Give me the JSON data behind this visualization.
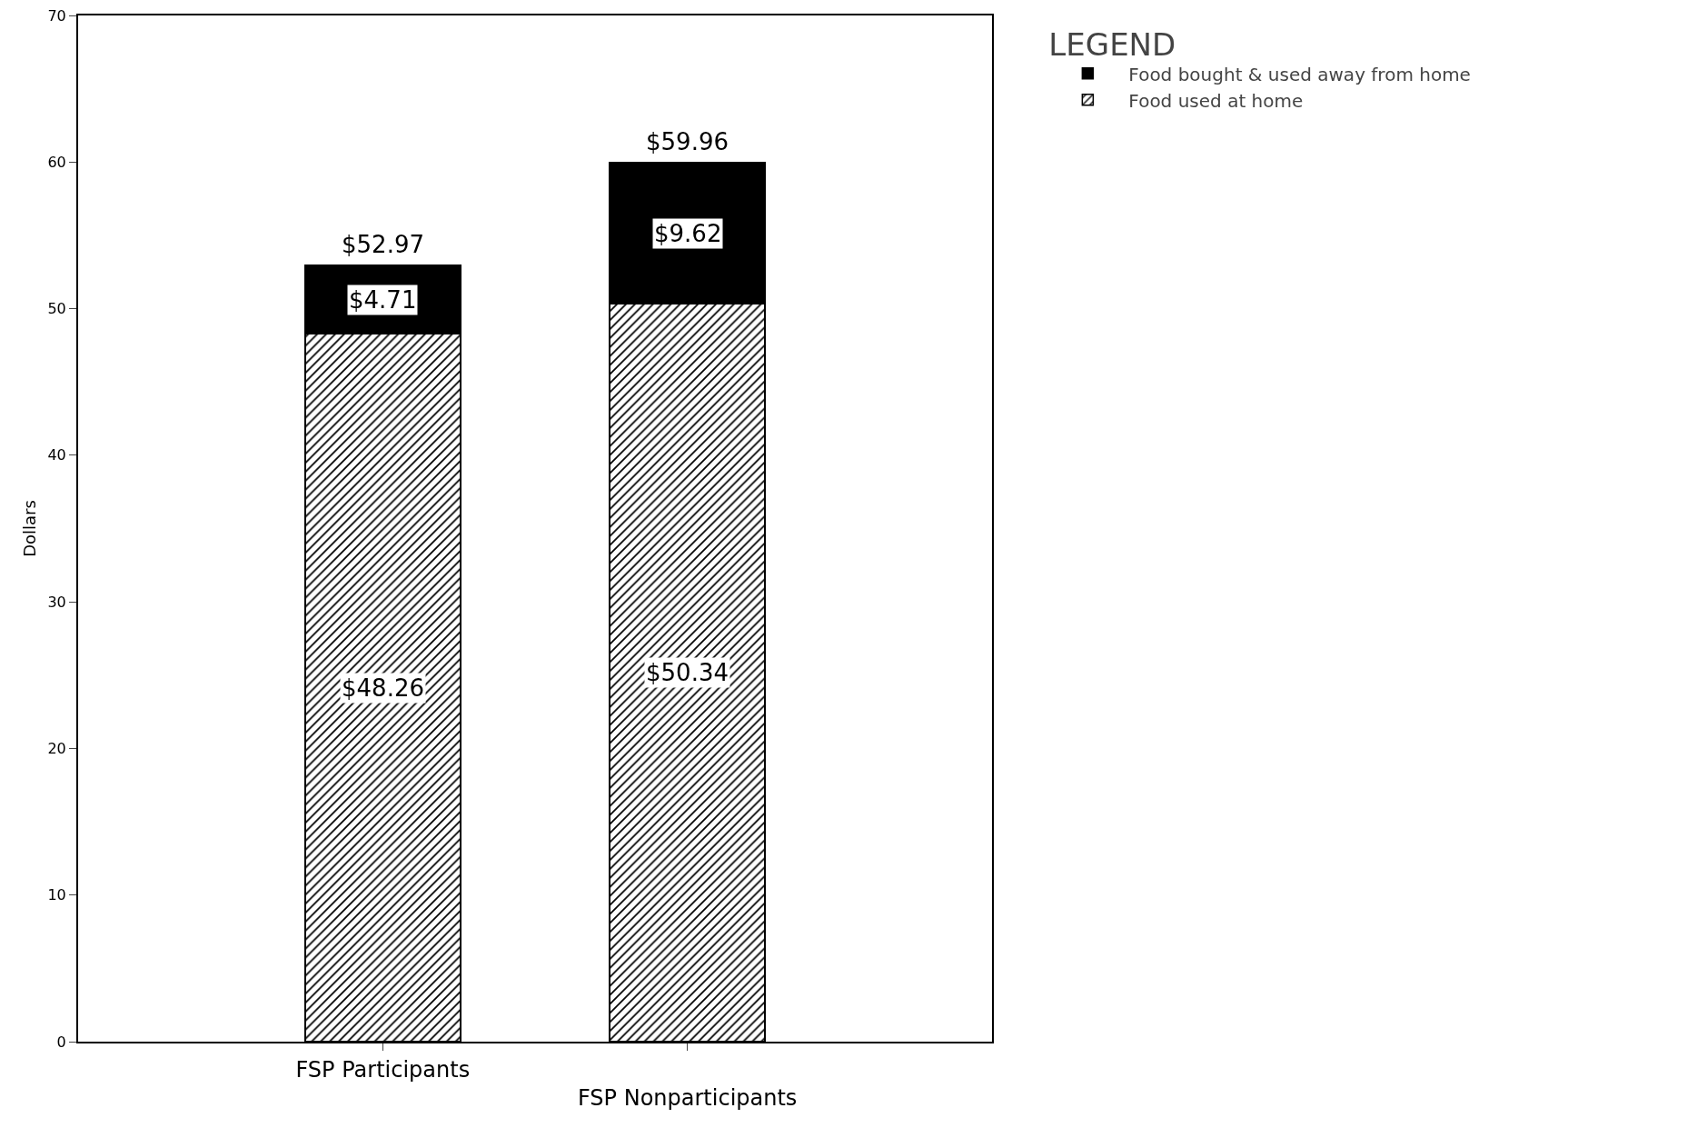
{
  "chart_data": {
    "type": "bar",
    "stacked": true,
    "ylabel": "Dollars",
    "legend_title": "LEGEND",
    "legend": "top right",
    "categories": [
      "FSP Participants",
      "FSP Nonparticipants"
    ],
    "series": [
      {
        "name": "Food used at home",
        "color": "#000000",
        "values": [
          48.26,
          50.34
        ],
        "value_labels": [
          "$48.26",
          "$50.34"
        ]
      },
      {
        "name": "Food bought & used away from home",
        "color": "#000000",
        "values": [
          4.71,
          9.62
        ],
        "value_labels": [
          "$4.71",
          "$9.62"
        ]
      }
    ],
    "totals": [
      "$52.97",
      "$59.96"
    ],
    "ylim": [
      0,
      70
    ],
    "yticks": [
      0,
      10,
      20,
      30,
      40,
      50,
      60,
      70
    ],
    "grid": false
  }
}
